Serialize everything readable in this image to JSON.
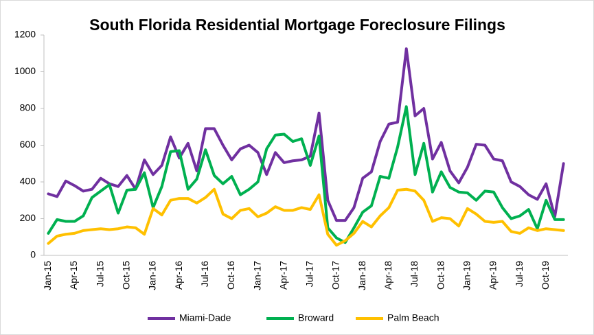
{
  "chart_data": {
    "type": "line",
    "title": "South Florida Residential Mortgage Foreclosure Filings",
    "categories": [
      "Jan-15",
      null,
      null,
      "Apr-15",
      null,
      null,
      "Jul-15",
      null,
      null,
      "Oct-15",
      null,
      null,
      "Jan-16",
      null,
      null,
      "Apr-16",
      null,
      null,
      "Jul-16",
      null,
      null,
      "Oct-16",
      null,
      null,
      "Jan-17",
      null,
      null,
      "Apr-17",
      null,
      null,
      "Jul-17",
      null,
      null,
      "Oct-17",
      null,
      null,
      "Jan-18",
      null,
      null,
      "Apr-18",
      null,
      null,
      "Jul-18",
      null,
      null,
      "Oct-18",
      null,
      null,
      "Jan-19",
      null,
      null,
      "Apr-19",
      null,
      null,
      "Jul-19",
      null,
      null,
      "Oct-19",
      null,
      null
    ],
    "series": [
      {
        "name": "Miami-Dade",
        "color": "#7030a0",
        "values": [
          335,
          320,
          405,
          380,
          350,
          360,
          420,
          390,
          375,
          435,
          360,
          520,
          440,
          490,
          645,
          530,
          610,
          460,
          690,
          690,
          600,
          520,
          580,
          600,
          560,
          440,
          560,
          505,
          515,
          520,
          540,
          775,
          300,
          190,
          190,
          260,
          420,
          455,
          620,
          715,
          725,
          1125,
          760,
          800,
          525,
          615,
          460,
          395,
          480,
          605,
          600,
          525,
          515,
          400,
          375,
          330,
          305,
          390,
          210,
          500
        ]
      },
      {
        "name": "Broward",
        "color": "#00b050",
        "values": [
          120,
          195,
          185,
          185,
          215,
          315,
          350,
          385,
          230,
          355,
          360,
          450,
          260,
          375,
          565,
          570,
          360,
          415,
          575,
          435,
          390,
          430,
          330,
          360,
          400,
          580,
          655,
          660,
          620,
          635,
          490,
          650,
          150,
          95,
          70,
          150,
          235,
          270,
          430,
          420,
          590,
          810,
          440,
          610,
          345,
          455,
          370,
          345,
          340,
          300,
          350,
          345,
          260,
          200,
          215,
          250,
          145,
          300,
          195,
          195
        ]
      },
      {
        "name": "Palm Beach",
        "color": "#ffc000",
        "values": [
          65,
          105,
          115,
          120,
          135,
          140,
          145,
          140,
          145,
          155,
          150,
          115,
          255,
          220,
          300,
          310,
          310,
          285,
          315,
          360,
          225,
          200,
          245,
          255,
          210,
          230,
          265,
          245,
          245,
          260,
          250,
          330,
          115,
          55,
          80,
          120,
          185,
          155,
          215,
          260,
          355,
          360,
          350,
          300,
          185,
          205,
          200,
          160,
          255,
          225,
          185,
          180,
          185,
          130,
          120,
          150,
          135,
          145,
          140,
          135
        ]
      }
    ],
    "ylim": [
      0,
      1200
    ],
    "yticks": [
      0,
      200,
      400,
      600,
      800,
      1000,
      1200
    ],
    "grid": false,
    "legend": "bottom"
  }
}
